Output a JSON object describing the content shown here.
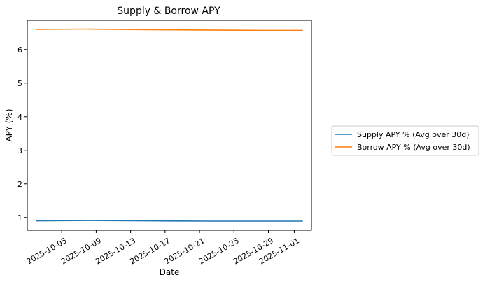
{
  "chart_data": {
    "type": "line",
    "title": "Supply & Borrow APY",
    "xlabel": "Date",
    "ylabel": "APY (%)",
    "x_ticks": [
      "2025-10-05",
      "2025-10-09",
      "2025-10-13",
      "2025-10-17",
      "2025-10-21",
      "2025-10-25",
      "2025-10-29",
      "2025-11-01"
    ],
    "y_ticks": [
      1,
      2,
      3,
      4,
      5,
      6
    ],
    "xlim": [
      "2025-10-01",
      "2025-11-03"
    ],
    "ylim": [
      0.62,
      6.87
    ],
    "grid": false,
    "legend_placement": "right-outside",
    "x": [
      "2025-10-02",
      "2025-10-08",
      "2025-10-15",
      "2025-10-22",
      "2025-10-29",
      "2025-11-02"
    ],
    "series": [
      {
        "name": "Supply APY % (Avg over 30d)",
        "color": "#1f77b4",
        "values": [
          0.9,
          0.91,
          0.9,
          0.89,
          0.89,
          0.89
        ]
      },
      {
        "name": "Borrow APY % (Avg over 30d)",
        "color": "#ff7f0e",
        "values": [
          6.6,
          6.61,
          6.59,
          6.58,
          6.57,
          6.57
        ]
      }
    ]
  }
}
